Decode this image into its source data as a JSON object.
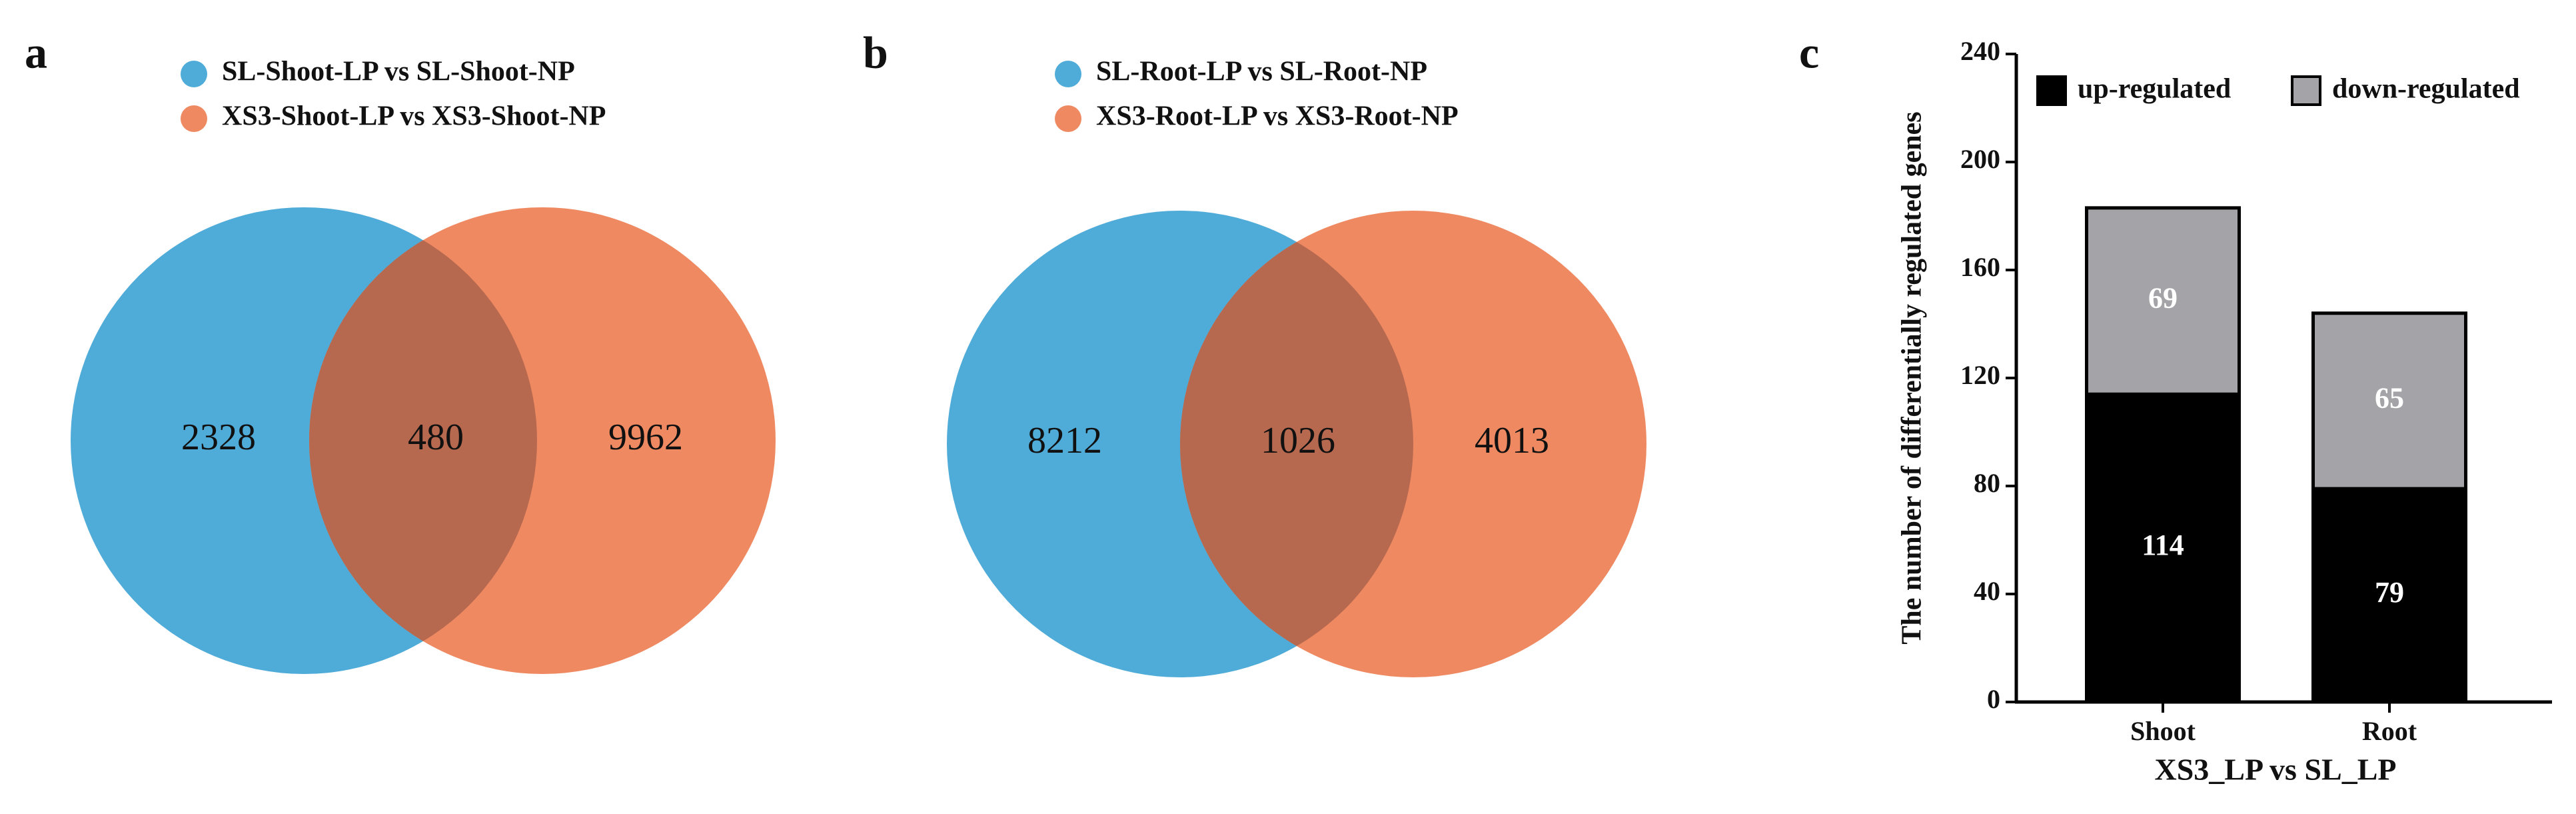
{
  "chart_data": [
    {
      "type": "venn",
      "panel": "a",
      "series": [
        {
          "name": "SL-Shoot-LP vs SL-Shoot-NP",
          "color": "#4fabd8"
        },
        {
          "name": "XS3-Shoot-LP vs XS3-Shoot-NP",
          "color": "#ef8961"
        }
      ],
      "overlap_color": "#b6694f",
      "values": [
        2328,
        480,
        9962
      ]
    },
    {
      "type": "venn",
      "panel": "b",
      "series": [
        {
          "name": "SL-Root-LP vs SL-Root-NP",
          "color": "#4fabd8"
        },
        {
          "name": "XS3-Root-LP vs XS3-Root-NP",
          "color": "#ef8961"
        }
      ],
      "overlap_color": "#b6694f",
      "values": [
        8212,
        1026,
        4013
      ]
    },
    {
      "type": "bar",
      "panel": "c",
      "stacked": true,
      "categories": [
        "Shoot",
        "Root"
      ],
      "series": [
        {
          "name": "up-regulated",
          "color": "#000000",
          "values": [
            114,
            79
          ]
        },
        {
          "name": "down-regulated",
          "color": "#a4a4a8",
          "values": [
            69,
            65
          ]
        }
      ],
      "ylim": [
        0,
        240
      ],
      "yticks": [
        0,
        40,
        80,
        120,
        160,
        200,
        240
      ],
      "ylabel": "The number of differentially regulated genes",
      "xlabel": "XS3_LP vs SL_LP"
    }
  ]
}
